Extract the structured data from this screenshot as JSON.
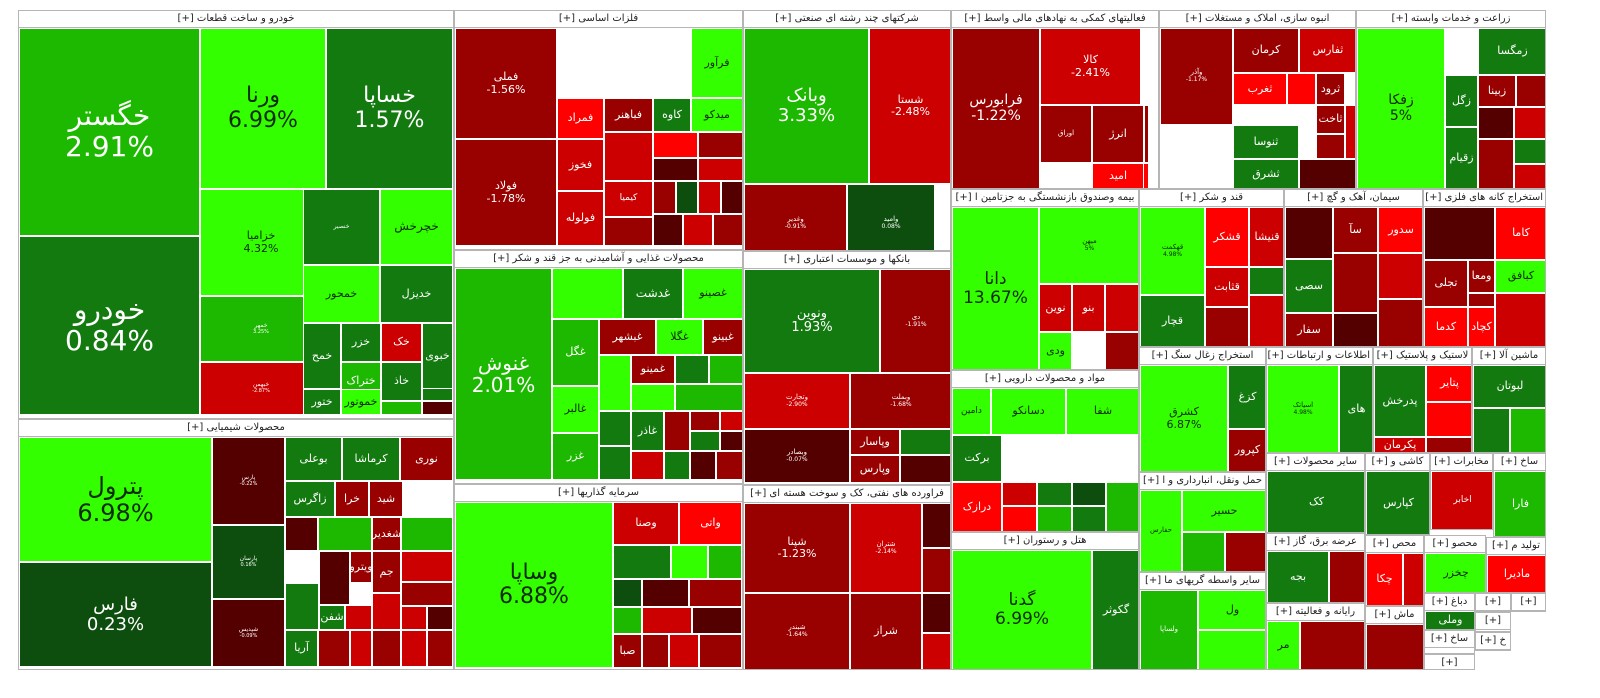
{
  "chart_data": {
    "type": "treemap",
    "colors": {
      "up_strong": "#33ff00",
      "up_mid": "#1db800",
      "up_dark": "#137a10",
      "up_deep": "#0d4d0d",
      "down_strong": "#ff0000",
      "down_mid": "#cc0000",
      "down_dark": "#990000",
      "down_deep": "#550000"
    },
    "sectors": [
      {
        "title": "خودرو و ساخت قطعات [+]",
        "tiles": [
          {
            "symbol": "خگستر",
            "change": "2.91%",
            "pct": 2.91
          },
          {
            "symbol": "خودرو",
            "change": "0.84%",
            "pct": 0.84
          },
          {
            "symbol": "ورنا",
            "change": "6.99%",
            "pct": 6.99
          },
          {
            "symbol": "خساپا",
            "change": "1.57%",
            "pct": 1.57
          },
          {
            "symbol": "خزامیا",
            "change": "4.32%",
            "pct": 4.32
          },
          {
            "symbol": "خمهر",
            "change": "3.25%",
            "pct": 3.25
          },
          {
            "symbol": "خبهمن",
            "change": "-2.87%",
            "pct": -2.87
          },
          {
            "symbol": "خچرخش",
            "change": "",
            "pct": 5.0
          },
          {
            "symbol": "خنصیر",
            "change": "",
            "pct": 0.8
          },
          {
            "symbol": "خمحور",
            "change": "",
            "pct": 6.0
          },
          {
            "symbol": "خدیزل",
            "change": "",
            "pct": 1.0
          },
          {
            "symbol": "خبوی",
            "change": "",
            "pct": 0.9
          },
          {
            "symbol": "خمح",
            "change": "",
            "pct": 0.9
          },
          {
            "symbol": "خزر",
            "change": "",
            "pct": 0.5
          },
          {
            "symbol": "خک",
            "change": "",
            "pct": -2.0
          },
          {
            "symbol": "خر",
            "change": "",
            "pct": -3.0
          },
          {
            "symbol": "ختراک",
            "change": "",
            "pct": 3.0
          },
          {
            "symbol": "خاذ",
            "change": "",
            "pct": 1.5
          },
          {
            "symbol": "ختور",
            "change": "",
            "pct": 0.7
          },
          {
            "symbol": "خموتور",
            "change": "",
            "pct": 4.0
          }
        ]
      },
      {
        "title": "محصولات شیمیایی [+]",
        "tiles": [
          {
            "symbol": "پترول",
            "change": "6.98%",
            "pct": 6.98
          },
          {
            "symbol": "فارس",
            "change": "0.23%",
            "pct": 0.23
          },
          {
            "symbol": "پارس",
            "change": "-0.22%",
            "pct": -0.22
          },
          {
            "symbol": "پارسان",
            "change": "0.16%",
            "pct": 0.16
          },
          {
            "symbol": "شپدیس",
            "change": "-0.09%",
            "pct": -0.09
          },
          {
            "symbol": "بوعلی",
            "change": "",
            "pct": 0.8
          },
          {
            "symbol": "کرماشا",
            "change": "",
            "pct": 1.5
          },
          {
            "symbol": "نوری",
            "change": "",
            "pct": -0.5
          },
          {
            "symbol": "زاگرس",
            "change": "",
            "pct": 1.0
          },
          {
            "symbol": "خرا",
            "change": "",
            "pct": -1.0
          },
          {
            "symbol": "شید",
            "change": "",
            "pct": -0.8
          },
          {
            "symbol": "شغدیر",
            "change": "",
            "pct": -1.5
          },
          {
            "symbol": "جم",
            "change": "",
            "pct": -1.0
          },
          {
            "symbol": "شفن",
            "change": "",
            "pct": 0.5
          },
          {
            "symbol": "آریا",
            "change": "",
            "pct": 0.7
          },
          {
            "symbol": "ویترو",
            "change": "",
            "pct": -0.8
          }
        ]
      },
      {
        "title": "فلزات اساسی [+]",
        "tiles": [
          {
            "symbol": "فملی",
            "change": "-1.56%",
            "pct": -1.56
          },
          {
            "symbol": "فولاد",
            "change": "-1.78%",
            "pct": -1.78
          },
          {
            "symbol": "فخوز",
            "change": "",
            "pct": -2.0
          },
          {
            "symbol": "فولوله",
            "change": "",
            "pct": -2.5
          },
          {
            "symbol": "فمراد",
            "change": "",
            "pct": -5.0
          },
          {
            "symbol": "فباهنر",
            "change": "",
            "pct": -0.5
          },
          {
            "symbol": "کاوه",
            "change": "",
            "pct": 0.8
          },
          {
            "symbol": "میدکو",
            "change": "",
            "pct": 5.0
          },
          {
            "symbol": "فرآور",
            "change": "",
            "pct": 6.0
          },
          {
            "symbol": "کیمیا",
            "change": "",
            "pct": -2.0
          }
        ]
      },
      {
        "title": "محصولات غذایی و آشامیدنی به جز قند و شکر [+]",
        "tiles": [
          {
            "symbol": "غنوش",
            "change": "2.01%",
            "pct": 2.01
          },
          {
            "symbol": "غدشت",
            "change": "",
            "pct": 0.8
          },
          {
            "symbol": "غصینو",
            "change": "",
            "pct": 5.0
          },
          {
            "symbol": "غگل",
            "change": "",
            "pct": 2.0
          },
          {
            "symbol": "غالبر",
            "change": "",
            "pct": 4.0
          },
          {
            "symbol": "غزر",
            "change": "",
            "pct": 2.5
          },
          {
            "symbol": "غبشهر",
            "change": "",
            "pct": -0.8
          },
          {
            "symbol": "غگلا",
            "change": "",
            "pct": 4.0
          },
          {
            "symbol": "غبینو",
            "change": "",
            "pct": -1.0
          },
          {
            "symbol": "غمینو",
            "change": "",
            "pct": -0.6
          },
          {
            "symbol": "غاذر",
            "change": "",
            "pct": 1.0
          }
        ]
      },
      {
        "title": "سرمایه گذاریها [+]",
        "tiles": [
          {
            "symbol": "وساپا",
            "change": "6.88%",
            "pct": 6.88
          },
          {
            "symbol": "واتی",
            "change": "",
            "pct": -5.0
          },
          {
            "symbol": "وصنا",
            "change": "",
            "pct": -2.0
          },
          {
            "symbol": "صبا",
            "change": "",
            "pct": -0.6
          }
        ]
      },
      {
        "title": "شرکتهای چند رشته ای صنعتی [+]",
        "tiles": [
          {
            "symbol": "وبانک",
            "change": "3.33%",
            "pct": 3.33
          },
          {
            "symbol": "شستا",
            "change": "-2.48%",
            "pct": -2.48
          },
          {
            "symbol": "وغدیر",
            "change": "-0.91%",
            "pct": -0.91
          },
          {
            "symbol": "وامید",
            "change": "0.08%",
            "pct": 0.08
          }
        ]
      },
      {
        "title": "بانکها و موسسات اعتباری [+]",
        "tiles": [
          {
            "symbol": "ونوین",
            "change": "1.93%",
            "pct": 1.93
          },
          {
            "symbol": "دی",
            "change": "-1.91%",
            "pct": -1.91
          },
          {
            "symbol": "وتجارت",
            "change": "-2.90%",
            "pct": -2.9
          },
          {
            "symbol": "وبملت",
            "change": "-1.68%",
            "pct": -1.68
          },
          {
            "symbol": "وبصادر",
            "change": "-0.07%",
            "pct": -0.07
          },
          {
            "symbol": "وپاسار",
            "change": "",
            "pct": -0.7
          },
          {
            "symbol": "وپارس",
            "change": "",
            "pct": -0.5
          }
        ]
      },
      {
        "title": "فراورده های نفتی، کک و سوخت هسته ای [+]",
        "tiles": [
          {
            "symbol": "شپنا",
            "change": "-1.23%",
            "pct": -1.23
          },
          {
            "symbol": "شتران",
            "change": "-2.14%",
            "pct": -2.14
          },
          {
            "symbol": "شبندر",
            "change": "-1.64%",
            "pct": -1.64
          },
          {
            "symbol": "شراز",
            "change": "",
            "pct": -0.5
          }
        ]
      },
      {
        "title": "فعالیتهای کمکی به نهادهای مالی واسط [+]",
        "tiles": [
          {
            "symbol": "فرابورس",
            "change": "-1.22%",
            "pct": -1.22
          },
          {
            "symbol": "کالا",
            "change": "-2.41%",
            "pct": -2.41
          },
          {
            "symbol": "اوراق",
            "change": "",
            "pct": -1.0
          },
          {
            "symbol": "انرژ",
            "change": "",
            "pct": -1.5
          },
          {
            "symbol": "امید",
            "change": "",
            "pct": -5.0
          }
        ]
      },
      {
        "title": "انبوه سازی، املاک و مستغلات [+]",
        "tiles": [
          {
            "symbol": "وآذر",
            "change": "-1.17%",
            "pct": -1.17
          },
          {
            "symbol": "کرمان",
            "change": "",
            "pct": -1.5
          },
          {
            "symbol": "ثفارس",
            "change": "",
            "pct": -2.0
          },
          {
            "symbol": "ثنوسا",
            "change": "",
            "pct": 0.8
          },
          {
            "symbol": "ثشرق",
            "change": "",
            "pct": 1.0
          },
          {
            "symbol": "ثغرب",
            "change": "",
            "pct": -5.0
          },
          {
            "symbol": "ثاخت",
            "change": "",
            "pct": -0.6
          },
          {
            "symbol": "ثرود",
            "change": "",
            "pct": -0.5
          }
        ]
      },
      {
        "title": "زراعت و خدمات وابسته [+]",
        "tiles": [
          {
            "symbol": "زفکا",
            "change": "5%",
            "pct": 5.0
          },
          {
            "symbol": "زمگسا",
            "change": "",
            "pct": 0.8
          },
          {
            "symbol": "زبینا",
            "change": "",
            "pct": -0.5
          },
          {
            "symbol": "زگل",
            "change": "",
            "pct": 1.0
          },
          {
            "symbol": "زقیام",
            "change": "",
            "pct": 0.7
          }
        ]
      },
      {
        "title": "بیمه وصندوق بازنشستگی به جزتامین ا [+]",
        "tiles": [
          {
            "symbol": "دانا",
            "change": "13.67%",
            "pct": 13.67
          },
          {
            "symbol": "میهن",
            "change": "5%",
            "pct": 5.0
          },
          {
            "symbol": "نوین",
            "change": "",
            "pct": -2.0
          },
          {
            "symbol": "بنو",
            "change": "",
            "pct": -2.5
          },
          {
            "symbol": "ودی",
            "change": "",
            "pct": 4.0
          }
        ]
      },
      {
        "title": "قند و شکر [+]",
        "tiles": [
          {
            "symbol": "قهکمت",
            "change": "4.98%",
            "pct": 4.98
          },
          {
            "symbol": "قشکر",
            "change": "",
            "pct": -5.0
          },
          {
            "symbol": "قنیشا",
            "change": "",
            "pct": -2.0
          },
          {
            "symbol": "قثابت",
            "change": "",
            "pct": -3.0
          },
          {
            "symbol": "قچار",
            "change": "",
            "pct": 0.5
          }
        ]
      },
      {
        "title": "سیمان، آهک و گچ [+]",
        "tiles": [
          {
            "symbol": "سدور",
            "change": "",
            "pct": -4.0
          },
          {
            "symbol": "سآ",
            "change": "",
            "pct": -1.0
          },
          {
            "symbol": "سصی",
            "change": "",
            "pct": 1.0
          },
          {
            "symbol": "سفار",
            "change": "",
            "pct": -0.5
          }
        ]
      },
      {
        "title": "استخراج کانه های فلزی [+]",
        "tiles": [
          {
            "symbol": "کاما",
            "change": "",
            "pct": -5.0
          },
          {
            "symbol": "کبافق",
            "change": "",
            "pct": 6.0
          },
          {
            "symbol": "تجلی",
            "change": "",
            "pct": -0.5
          },
          {
            "symbol": "کدما",
            "change": "",
            "pct": -5.0
          },
          {
            "symbol": "کچاد",
            "change": "",
            "pct": -4.0
          },
          {
            "symbol": "ومعا",
            "change": "",
            "pct": -0.5
          }
        ]
      },
      {
        "title": "مواد و محصولات دارویی [+]",
        "tiles": [
          {
            "symbol": "دسانکو",
            "change": "",
            "pct": 5.0
          },
          {
            "symbol": "دامین",
            "change": "",
            "pct": 5.0
          },
          {
            "symbol": "شفا",
            "change": "",
            "pct": 5.0
          },
          {
            "symbol": "برکت",
            "change": "",
            "pct": 0.5
          },
          {
            "symbol": "درازک",
            "change": "",
            "pct": -5.0
          }
        ]
      },
      {
        "title": "استخراج زغال سنگ [+]",
        "tiles": [
          {
            "symbol": "کشرق",
            "change": "6.87%",
            "pct": 6.87
          },
          {
            "symbol": "کزغ",
            "change": "",
            "pct": 0.7
          },
          {
            "symbol": "کپرور",
            "change": "",
            "pct": -0.6
          }
        ]
      },
      {
        "title": "اطلاعات و ارتباطات [+]",
        "tiles": [
          {
            "symbol": "اسیاتک",
            "change": "4.98%",
            "pct": 4.98
          },
          {
            "symbol": "های",
            "change": "",
            "pct": 0.7
          }
        ]
      },
      {
        "title": "لاستیک و پلاستیک [+]",
        "tiles": [
          {
            "symbol": "پتایر",
            "change": "",
            "pct": -5.0
          },
          {
            "symbol": "پدرخش",
            "change": "",
            "pct": 1.5
          },
          {
            "symbol": "پکرمان",
            "change": "",
            "pct": -3.0
          }
        ]
      },
      {
        "title": "ماشین آلا [+]",
        "tiles": [
          {
            "symbol": "لبوتان",
            "change": "",
            "pct": 1.0
          }
        ]
      },
      {
        "title": "هتل و رستوران [+]",
        "tiles": [
          {
            "symbol": "گدنا",
            "change": "6.99%",
            "pct": 6.99
          },
          {
            "symbol": "گکوثر",
            "change": "",
            "pct": 0.7
          }
        ]
      },
      {
        "title": "حمل ونقل، انبارداری و ا [+]",
        "tiles": [
          {
            "symbol": "حفارس",
            "change": "",
            "pct": 5.0
          },
          {
            "symbol": "حسیر",
            "change": "",
            "pct": 5.0
          }
        ]
      },
      {
        "title": "سایر واسطه گریهای ما [+]",
        "tiles": [
          {
            "symbol": "ولساپا",
            "change": "",
            "pct": 2.0
          },
          {
            "symbol": "ول",
            "change": "",
            "pct": 5.0
          }
        ]
      },
      {
        "title": "سایر محصولات [+]",
        "tiles": [
          {
            "symbol": "کک",
            "change": "",
            "pct": 0.5
          }
        ]
      },
      {
        "title": "عرضه برق، گاز [+]",
        "tiles": [
          {
            "symbol": "بجه",
            "change": "",
            "pct": 0.5
          }
        ]
      },
      {
        "title": "رایانه و فعالیته [+]",
        "tiles": [
          {
            "symbol": "مر",
            "change": "",
            "pct": 4.0
          }
        ]
      },
      {
        "title": "کاشی و [+]",
        "tiles": [
          {
            "symbol": "کپارس",
            "change": "",
            "pct": 1.5
          }
        ]
      },
      {
        "title": "محص [+]",
        "tiles": [
          {
            "symbol": "چکا",
            "change": "",
            "pct": -5.0
          }
        ]
      },
      {
        "title": "ماش [+]",
        "tiles": []
      },
      {
        "title": "مخابرات [+]",
        "tiles": [
          {
            "symbol": "اخابر",
            "change": "",
            "pct": -3.0
          }
        ]
      },
      {
        "title": "محصو [+]",
        "tiles": [
          {
            "symbol": "چخزر",
            "change": "",
            "pct": 5.0
          }
        ]
      },
      {
        "title": "ساخ [+]",
        "tiles": [
          {
            "symbol": "فارا",
            "change": "",
            "pct": 2.0
          }
        ]
      },
      {
        "title": "تولید م [+]",
        "tiles": [
          {
            "symbol": "مادیرا",
            "change": "",
            "pct": -5.0
          }
        ]
      },
      {
        "title": "دباغ [+]",
        "tiles": [
          {
            "symbol": "وملی",
            "change": "",
            "pct": 0.5
          }
        ]
      },
      {
        "title": "ساخ [+]",
        "tiles": []
      },
      {
        "title": "[+]",
        "tiles": []
      },
      {
        "title": "[+]",
        "tiles": []
      },
      {
        "title": "[+]",
        "tiles": []
      },
      {
        "title": "خ [+]",
        "tiles": []
      },
      {
        "title": "[+]",
        "tiles": []
      }
    ]
  }
}
